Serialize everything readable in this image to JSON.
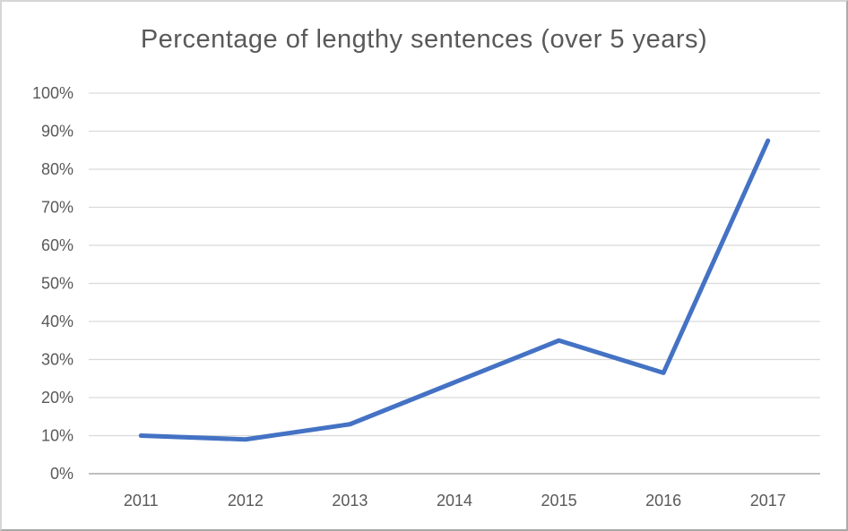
{
  "chart_data": {
    "type": "line",
    "title": "Percentage of lengthy sentences (over 5 years)",
    "categories": [
      "2011",
      "2012",
      "2013",
      "2014",
      "2015",
      "2016",
      "2017"
    ],
    "series": [
      {
        "name": "Percentage of lengthy sentences (over 5 years)",
        "values": [
          10,
          9,
          13,
          24,
          35,
          26.5,
          87.5
        ]
      }
    ],
    "xlabel": "",
    "ylabel": "",
    "ylim": [
      0,
      100
    ],
    "ytick_step": 10,
    "ytick_labels": [
      "0%",
      "10%",
      "20%",
      "30%",
      "40%",
      "50%",
      "60%",
      "70%",
      "80%",
      "90%",
      "100%"
    ],
    "grid": true,
    "legend_position": "none",
    "colors": {
      "line": "#4472C4",
      "gridline": "#D9D9D9",
      "axis_line": "#BFBFBF",
      "text": "#595959",
      "background": "#FFFFFF",
      "frame_border": "#ABABAB"
    }
  }
}
